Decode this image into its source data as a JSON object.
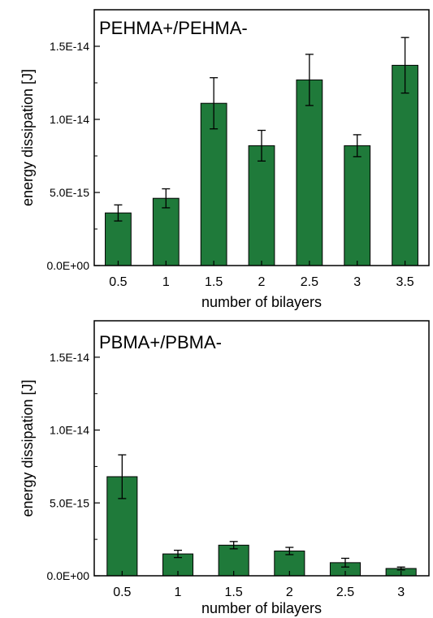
{
  "chart_data": [
    {
      "type": "bar",
      "title": "PEHMA+/PEHMA-",
      "xlabel": "number of bilayers",
      "ylabel": "energy dissipation [J]",
      "categories": [
        "0.5",
        "1",
        "1.5",
        "2",
        "2.5",
        "3",
        "3.5"
      ],
      "values": [
        3.6e-15,
        4.6e-15,
        1.11e-14,
        8.2e-15,
        1.27e-14,
        8.2e-15,
        1.37e-14
      ],
      "errors": [
        5.5e-16,
        6.5e-16,
        1.75e-15,
        1.05e-15,
        1.75e-15,
        7.5e-16,
        1.9e-15
      ],
      "ylim": [
        0,
        1.75e-14
      ],
      "yticks": [
        0,
        5e-15,
        1e-14,
        1.5e-14
      ],
      "ytick_labels": [
        "0.0E+00",
        "5.0E-15",
        "1.0E-14",
        "1.5E-14"
      ],
      "bar_color": "#1f7a3a",
      "grid": false
    },
    {
      "type": "bar",
      "title": "PBMA+/PBMA-",
      "xlabel": "number of bilayers",
      "ylabel": "energy dissipation [J]",
      "categories": [
        "0.5",
        "1",
        "1.5",
        "2",
        "2.5",
        "3"
      ],
      "values": [
        6.8e-15,
        1.5e-15,
        2.1e-15,
        1.7e-15,
        9e-16,
        5e-16
      ],
      "errors": [
        1.5e-15,
        2.5e-16,
        2.5e-16,
        2.5e-16,
        3e-16,
        1e-16
      ],
      "ylim": [
        0,
        1.75e-14
      ],
      "yticks": [
        0,
        5e-15,
        1e-14,
        1.5e-14
      ],
      "ytick_labels": [
        "0.0E+00",
        "5.0E-15",
        "1.0E-14",
        "1.5E-14"
      ],
      "bar_color": "#1f7a3a",
      "grid": false
    }
  ]
}
